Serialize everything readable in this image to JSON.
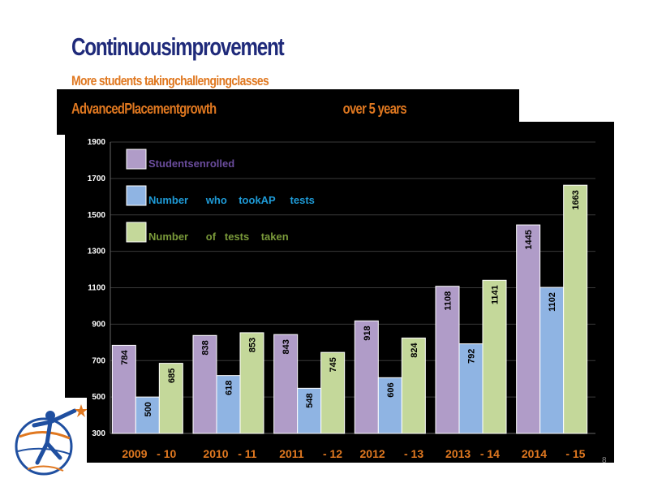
{
  "slide": {
    "title": "Continuousimprovement",
    "subtitle": "More      students        takingchallengingclasses",
    "banner_left": "AdvancedPlacementgrowth",
    "banner_right": "over    5   years",
    "page_number": "8"
  },
  "chart_data": {
    "type": "bar",
    "categories": [
      "2009   - 10",
      "2010   - 11",
      "2011      - 12",
      "2012      - 13",
      "2013   - 14",
      "2014      - 15"
    ],
    "series": [
      {
        "name": "Studentsenrolled",
        "values": [
          784,
          838,
          843,
          918,
          1108,
          1445
        ],
        "color": "#b09cc8"
      },
      {
        "name": "Number      who    tookAP     tests",
        "values": [
          500,
          618,
          548,
          606,
          792,
          1102
        ],
        "color": "#8fb4e3"
      },
      {
        "name": "Number      of   tests    taken",
        "values": [
          685,
          853,
          745,
          824,
          1141,
          1663
        ],
        "color": "#c4d89a"
      }
    ],
    "legend_text_colors": [
      "#6a4c9c",
      "#1e9ad6",
      "#7a9a3a"
    ],
    "yticks": [
      300,
      500,
      700,
      900,
      1100,
      1300,
      1500,
      1700,
      1900
    ],
    "ylim": [
      300,
      1900
    ],
    "grid": true,
    "legend": "top-left",
    "category_label_color": "#e07820"
  }
}
